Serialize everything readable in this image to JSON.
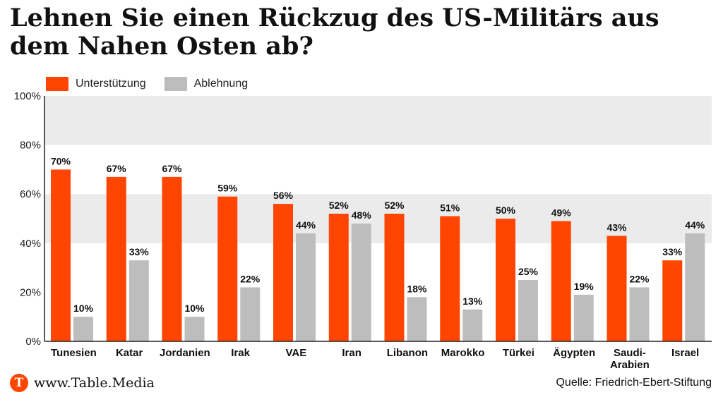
{
  "title": "Lehnen Sie einen Rückzug des US-Militärs aus dem Nahen Osten ab?",
  "footer": {
    "logo_letter": "T",
    "site": "www.Table.Media",
    "source": "Quelle: Friedrich-Ebert-Stiftung"
  },
  "colors": {
    "support": "#ff4500",
    "reject": "#bdbdbd",
    "band": "#ebebeb"
  },
  "chart_data": {
    "type": "bar",
    "title": "Lehnen Sie einen Rückzug des US-Militärs aus dem Nahen Osten ab?",
    "categories": [
      "Tunesien",
      "Katar",
      "Jordanien",
      "Irak",
      "VAE",
      "Iran",
      "Libanon",
      "Marokko",
      "Türkei",
      "Ägypten",
      "Saudi-\nArabien",
      "Israel"
    ],
    "series": [
      {
        "name": "Unterstützung",
        "values": [
          70,
          67,
          67,
          59,
          56,
          52,
          52,
          51,
          50,
          49,
          43,
          33
        ]
      },
      {
        "name": "Ablehnung",
        "values": [
          10,
          33,
          10,
          22,
          44,
          48,
          18,
          13,
          25,
          19,
          22,
          44
        ]
      }
    ],
    "ylim": [
      0,
      100
    ],
    "yticks": [
      0,
      20,
      40,
      60,
      80,
      100
    ],
    "tick_labels": [
      "0%",
      "20%",
      "40%",
      "60%",
      "80%",
      "100%"
    ],
    "value_suffix": "%",
    "legend": "top-left",
    "xlabel": "",
    "ylabel": ""
  }
}
